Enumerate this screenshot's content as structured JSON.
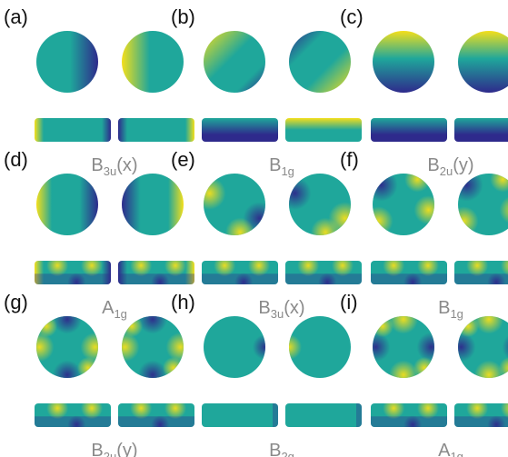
{
  "colors": {
    "dark": "#2e2a8c",
    "mid": "#1fa79b",
    "bright": "#f4df1b",
    "label_text": "#8a8a8a",
    "letter_text": "#111111"
  },
  "panels": [
    {
      "letter": "(a)",
      "symmetry": {
        "base": "B",
        "sub": "3u",
        "suffix": "(x)"
      },
      "pattern": "x-gradient"
    },
    {
      "letter": "(b)",
      "symmetry": {
        "base": "B",
        "sub": "1g",
        "suffix": ""
      },
      "pattern": "diagonal-wave"
    },
    {
      "letter": "(c)",
      "symmetry": {
        "base": "B",
        "sub": "2u",
        "suffix": "(y)"
      },
      "pattern": "y-gradient"
    },
    {
      "letter": "(d)",
      "symmetry": {
        "base": "A",
        "sub": "1g",
        "suffix": ""
      },
      "pattern": "x-wave"
    },
    {
      "letter": "(e)",
      "symmetry": {
        "base": "B",
        "sub": "3u",
        "suffix": "(x)"
      },
      "pattern": "quadrant"
    },
    {
      "letter": "(f)",
      "symmetry": {
        "base": "B",
        "sub": "1g",
        "suffix": ""
      },
      "pattern": "quadrant-rot"
    },
    {
      "letter": "(g)",
      "symmetry": {
        "base": "B",
        "sub": "2u",
        "suffix": "(y)"
      },
      "pattern": "saddle"
    },
    {
      "letter": "(h)",
      "symmetry": {
        "base": "B",
        "sub": "2g",
        "suffix": ""
      },
      "pattern": "uniform"
    },
    {
      "letter": "(i)",
      "symmetry": {
        "base": "A",
        "sub": "1g",
        "suffix": ""
      },
      "pattern": "saddle-rot"
    }
  ]
}
